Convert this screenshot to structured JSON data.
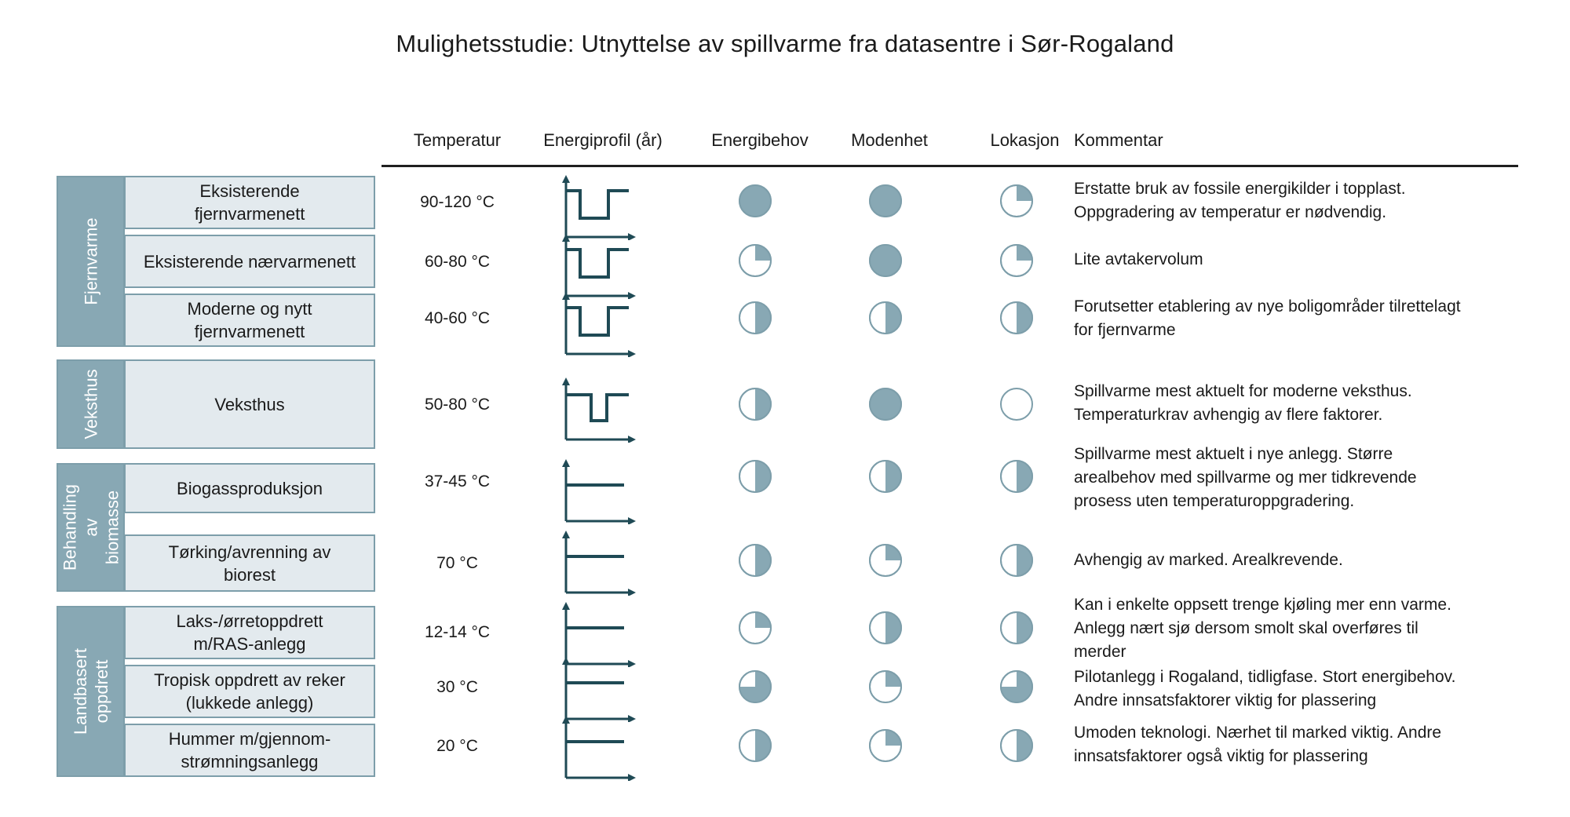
{
  "title": "Mulighetsstudie: Utnyttelse av spillvarme fra datasentre i Sør-Rogaland",
  "columns": {
    "temperature": "Temperatur",
    "energy_profile": "Energiprofil (år)",
    "energy_demand": "Energibehov",
    "maturity": "Modenhet",
    "location": "Lokasjon",
    "comment": "Kommentar"
  },
  "colors": {
    "accent": "#88a8b4",
    "box_fill": "#e3eaee",
    "box_border": "#7d9eaa",
    "profile_line": "#1f4a55"
  },
  "groups": [
    {
      "label": "Fjernvarme"
    },
    {
      "label": "Veksthus"
    },
    {
      "label": "Behandling av\nbiomasse"
    },
    {
      "label": "Landbasert\noppdrett"
    }
  ],
  "rows": [
    {
      "category": "Eksisterende\nfjernvarmenett",
      "temperature": "90-120 °C",
      "profile": "dip-wide",
      "energy_demand": 1.0,
      "maturity": 1.0,
      "location": 0.25,
      "comment": "Erstatte bruk av fossile energikilder i topplast.\nOppgradering av temperatur er nødvendig."
    },
    {
      "category": "Eksisterende nærvarmenett",
      "temperature": "60-80 °C",
      "profile": "dip-wide",
      "energy_demand": 0.25,
      "maturity": 1.0,
      "location": 0.25,
      "comment": "Lite avtakervolum"
    },
    {
      "category": "Moderne og nytt\nfjernvarmenett",
      "temperature": "40-60 °C",
      "profile": "dip-wide",
      "energy_demand": 0.5,
      "maturity": 0.5,
      "location": 0.5,
      "comment": "Forutsetter etablering av nye boligområder tilrettelagt\nfor fjernvarme"
    },
    {
      "category": "Veksthus",
      "temperature": "50-80 °C",
      "profile": "dip-narrow",
      "energy_demand": 0.5,
      "maturity": 1.0,
      "location": 0.0,
      "comment": "Spillvarme mest aktuelt for moderne veksthus.\nTemperaturkrav avhengig av flere faktorer."
    },
    {
      "category": "Biogassproduksjon",
      "temperature": "37-45 °C",
      "profile": "flat",
      "energy_demand": 0.5,
      "maturity": 0.5,
      "location": 0.5,
      "comment": "Spillvarme mest aktuelt i nye anlegg. Større\narealbehov med spillvarme og mer tidkrevende\nprosess uten temperaturoppgradering."
    },
    {
      "category": "Tørking/avrenning av\nbiorest",
      "temperature": "70 °C",
      "profile": "flat",
      "energy_demand": 0.5,
      "maturity": 0.25,
      "location": 0.5,
      "comment": "Avhengig av marked. Arealkrevende."
    },
    {
      "category": "Laks-/ørretoppdrett\nm/RAS-anlegg",
      "temperature": "12-14 °C",
      "profile": "flat",
      "energy_demand": 0.25,
      "maturity": 0.5,
      "location": 0.5,
      "comment": "Kan i enkelte oppsett trenge kjøling mer enn varme.\nAnlegg nært sjø dersom smolt skal overføres til\nmerder"
    },
    {
      "category": "Tropisk oppdrett av reker\n(lukkede anlegg)",
      "temperature": "30 °C",
      "profile": "flat",
      "energy_demand": 0.75,
      "maturity": 0.25,
      "location": 0.75,
      "comment": "Pilotanlegg i Rogaland, tidligfase. Stort energibehov.\nAndre innsatsfaktorer viktig for plassering"
    },
    {
      "category": "Hummer m/gjennom-\nstrømningsanlegg",
      "temperature": "20 °C",
      "profile": "flat",
      "energy_demand": 0.5,
      "maturity": 0.25,
      "location": 0.5,
      "comment": "Umoden teknologi. Nærhet til marked viktig. Andre\ninnsatsfaktorer også viktig for plassering"
    }
  ]
}
